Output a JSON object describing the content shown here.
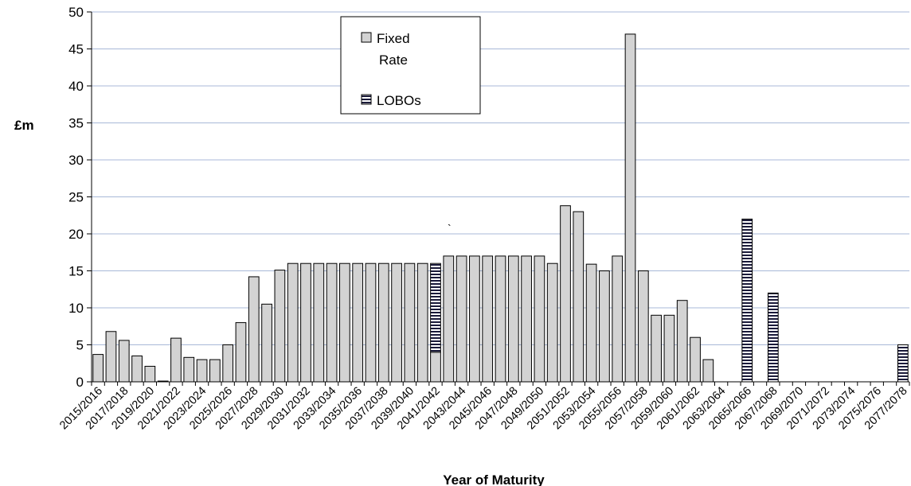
{
  "chart_data": {
    "type": "bar",
    "title": "",
    "xlabel": "Year of Maturity",
    "ylabel": "£m",
    "ylim": [
      0,
      50
    ],
    "yticks": [
      0,
      5,
      10,
      15,
      20,
      25,
      30,
      35,
      40,
      45,
      50
    ],
    "grid": "horizontal",
    "legend_position": "top-center",
    "categories": [
      "2015/2016",
      "2016/2017",
      "2017/2018",
      "2018/2019",
      "2019/2020",
      "2020/2021",
      "2021/2022",
      "2022/2023",
      "2023/2024",
      "2024/2025",
      "2025/2026",
      "2026/2027",
      "2027/2028",
      "2028/2029",
      "2029/2030",
      "2030/2031",
      "2031/2032",
      "2032/2033",
      "2033/2034",
      "2034/2035",
      "2035/2036",
      "2036/2037",
      "2037/2038",
      "2038/2039",
      "2039/2040",
      "2040/2041",
      "2041/2042",
      "2042/2043",
      "2043/2044",
      "2044/2045",
      "2045/2046",
      "2046/2047",
      "2047/2048",
      "2048/2049",
      "2049/2050",
      "2050/2051",
      "2051/2052",
      "2052/2053",
      "2053/2054",
      "2054/2055",
      "2055/2056",
      "2056/2057",
      "2057/2058",
      "2058/2059",
      "2059/2060",
      "2060/2061",
      "2061/2062",
      "2062/2063",
      "2063/2064",
      "2064/2065",
      "2065/2066",
      "2066/2067",
      "2067/2068",
      "2068/2069",
      "2069/2070",
      "2070/2071",
      "2071/2072",
      "2072/2073",
      "2073/2074",
      "2074/2075",
      "2075/2076",
      "2076/2077",
      "2077/2078"
    ],
    "series": [
      {
        "name": "Fixed Rate",
        "pattern": "solid",
        "color": "#d3d3d3",
        "values": [
          3.7,
          6.8,
          5.6,
          3.5,
          2.1,
          0.1,
          5.9,
          3.3,
          3.0,
          3.0,
          5.0,
          8.0,
          14.2,
          10.5,
          15.1,
          16,
          16,
          16,
          16,
          16,
          16,
          16,
          16,
          16,
          16,
          16,
          4.0,
          17,
          17,
          17,
          17,
          17,
          17,
          17,
          17,
          16,
          23.8,
          23.0,
          15.9,
          15.0,
          17,
          47,
          15.0,
          9.0,
          9.0,
          11.0,
          6.0,
          3.0,
          0,
          0,
          0,
          0,
          0,
          0,
          0,
          0,
          0,
          0,
          0,
          0,
          0,
          0,
          0
        ]
      },
      {
        "name": "LOBOs",
        "pattern": "horizontal-stripes",
        "color": "#1a1a3a",
        "values": [
          0,
          0,
          0,
          0,
          0,
          0,
          0,
          0,
          0,
          0,
          0,
          0,
          0,
          0,
          0,
          0,
          0,
          0,
          0,
          0,
          0,
          0,
          0,
          0,
          0,
          0,
          12.0,
          0,
          0,
          0,
          0,
          0,
          0,
          0,
          0,
          0,
          0,
          0,
          0,
          0,
          0,
          0,
          0,
          0,
          0,
          0,
          0,
          0,
          0,
          0,
          22.0,
          0,
          12.0,
          0,
          0,
          0,
          0,
          0,
          0,
          0,
          0,
          0,
          5.0
        ]
      }
    ],
    "annotations": [
      "`"
    ]
  },
  "legend": {
    "fixed_label_line1": "Fixed",
    "fixed_label_line2": "Rate",
    "lobo_label": "LOBOs"
  }
}
